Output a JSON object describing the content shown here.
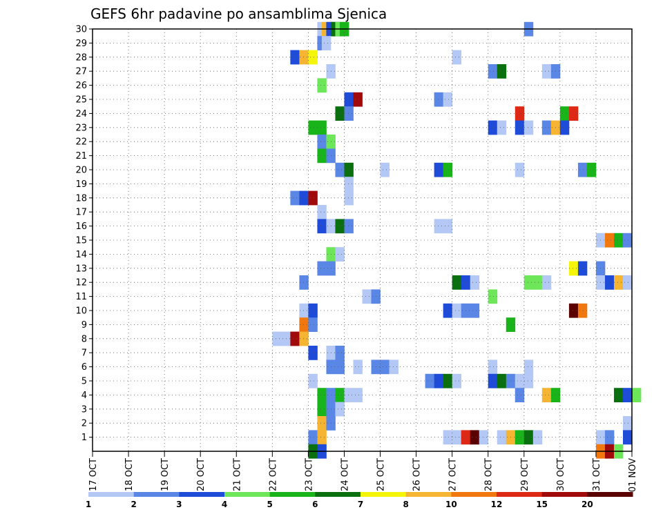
{
  "chart_data": {
    "type": "heatmap",
    "title": "GEFS 6hr padavine po ansamblima Sjenica",
    "y_ticks": [
      "1",
      "2",
      "3",
      "4",
      "5",
      "6",
      "7",
      "8",
      "9",
      "10",
      "11",
      "12",
      "13",
      "14",
      "15",
      "16",
      "17",
      "18",
      "19",
      "20",
      "21",
      "22",
      "23",
      "24",
      "25",
      "26",
      "27",
      "28",
      "29",
      "30"
    ],
    "x_ticks": [
      "17 OCT",
      "18 OCT",
      "19 OCT",
      "20 OCT",
      "21 OCT",
      "22 OCT",
      "23 OCT",
      "24 OCT",
      "25 OCT",
      "26 OCT",
      "27 OCT",
      "28 OCT",
      "29 OCT",
      "30 OCT",
      "31 OCT",
      "01 NOV"
    ],
    "x_range_days": [
      0,
      15
    ],
    "y_range_members": [
      0,
      30
    ],
    "grid": true,
    "colorbar": {
      "labels": [
        "1",
        "2",
        "3",
        "4",
        "5",
        "6",
        "7",
        "8",
        "10",
        "12",
        "15",
        "20"
      ],
      "colors": [
        "#b4c8f5",
        "#5a87e6",
        "#1e4bd7",
        "#6ee65a",
        "#19b419",
        "#0a700f",
        "#f5f50a",
        "#f5b432",
        "#f0780f",
        "#dc2814",
        "#a00a0a",
        "#5a0000"
      ]
    },
    "series_note": "cells: member, x day offset from 17 OCT, precipitation class index (0 = 1mm ... 11 = 20mm)",
    "cells": [
      [
        30,
        6.25,
        0
      ],
      [
        30,
        6.375,
        7
      ],
      [
        30,
        6.5,
        2
      ],
      [
        30,
        6.625,
        5
      ],
      [
        30,
        6.75,
        3
      ],
      [
        30,
        6.875,
        4
      ],
      [
        30,
        12.0,
        1
      ],
      [
        29,
        6.25,
        1
      ],
      [
        29,
        6.375,
        0
      ],
      [
        28,
        5.5,
        2
      ],
      [
        28,
        5.75,
        7
      ],
      [
        28,
        6.0,
        6
      ],
      [
        28,
        10.0,
        0
      ],
      [
        27,
        6.5,
        0
      ],
      [
        27,
        11.0,
        1
      ],
      [
        27,
        11.25,
        5
      ],
      [
        27,
        12.5,
        0
      ],
      [
        27,
        12.75,
        1
      ],
      [
        26,
        6.25,
        3
      ],
      [
        25,
        7.0,
        2
      ],
      [
        25,
        7.25,
        10
      ],
      [
        25,
        9.5,
        1
      ],
      [
        25,
        9.75,
        0
      ],
      [
        24,
        6.75,
        5
      ],
      [
        24,
        7.0,
        1
      ],
      [
        24,
        11.75,
        9
      ],
      [
        24,
        13.0,
        4
      ],
      [
        24,
        13.25,
        9
      ],
      [
        23,
        6.0,
        4
      ],
      [
        23,
        6.25,
        4
      ],
      [
        23,
        11.0,
        2
      ],
      [
        23,
        11.25,
        0
      ],
      [
        23,
        11.75,
        2
      ],
      [
        23,
        12.0,
        0
      ],
      [
        23,
        12.5,
        1
      ],
      [
        23,
        12.75,
        7
      ],
      [
        23,
        13.0,
        2
      ],
      [
        22,
        6.25,
        1
      ],
      [
        22,
        6.5,
        3
      ],
      [
        21,
        6.25,
        4
      ],
      [
        21,
        6.5,
        1
      ],
      [
        20,
        6.75,
        1
      ],
      [
        20,
        7.0,
        5
      ],
      [
        20,
        8.0,
        0
      ],
      [
        20,
        9.5,
        2
      ],
      [
        20,
        9.75,
        4
      ],
      [
        20,
        11.75,
        0
      ],
      [
        20,
        13.5,
        1
      ],
      [
        20,
        13.75,
        4
      ],
      [
        19,
        7.0,
        0
      ],
      [
        18,
        5.5,
        1
      ],
      [
        18,
        5.75,
        2
      ],
      [
        18,
        6.0,
        10
      ],
      [
        18,
        7.0,
        0
      ],
      [
        17,
        6.25,
        0
      ],
      [
        16,
        6.25,
        2
      ],
      [
        16,
        6.5,
        0
      ],
      [
        16,
        6.75,
        5
      ],
      [
        16,
        7.0,
        1
      ],
      [
        16,
        9.5,
        0
      ],
      [
        16,
        9.75,
        0
      ],
      [
        15,
        14.0,
        0
      ],
      [
        15,
        14.25,
        8
      ],
      [
        15,
        14.5,
        4
      ],
      [
        15,
        14.75,
        1
      ],
      [
        14,
        6.5,
        3
      ],
      [
        14,
        6.75,
        0
      ],
      [
        13,
        6.25,
        1
      ],
      [
        13,
        6.5,
        1
      ],
      [
        13,
        13.25,
        6
      ],
      [
        13,
        13.5,
        2
      ],
      [
        13,
        14.0,
        1
      ],
      [
        12,
        5.75,
        1
      ],
      [
        12,
        10.0,
        5
      ],
      [
        12,
        10.25,
        2
      ],
      [
        12,
        10.5,
        0
      ],
      [
        12,
        12.0,
        3
      ],
      [
        12,
        12.25,
        3
      ],
      [
        12,
        12.5,
        0
      ],
      [
        12,
        14.0,
        0
      ],
      [
        12,
        14.25,
        2
      ],
      [
        12,
        14.5,
        7
      ],
      [
        12,
        14.75,
        0
      ],
      [
        11,
        7.5,
        0
      ],
      [
        11,
        7.75,
        1
      ],
      [
        11,
        11.0,
        3
      ],
      [
        10,
        5.75,
        0
      ],
      [
        10,
        6.0,
        2
      ],
      [
        10,
        9.75,
        2
      ],
      [
        10,
        10.0,
        0
      ],
      [
        10,
        10.25,
        1
      ],
      [
        10,
        10.5,
        1
      ],
      [
        10,
        13.25,
        11
      ],
      [
        10,
        13.5,
        8
      ],
      [
        9,
        5.75,
        8
      ],
      [
        9,
        6.0,
        1
      ],
      [
        9,
        11.5,
        4
      ],
      [
        8,
        5.0,
        0
      ],
      [
        8,
        5.25,
        0
      ],
      [
        8,
        5.5,
        10
      ],
      [
        8,
        5.75,
        7
      ],
      [
        7,
        6.0,
        2
      ],
      [
        7,
        6.5,
        0
      ],
      [
        7,
        6.75,
        1
      ],
      [
        6,
        6.5,
        1
      ],
      [
        6,
        6.75,
        1
      ],
      [
        6,
        7.25,
        0
      ],
      [
        6,
        7.75,
        1
      ],
      [
        6,
        8.0,
        1
      ],
      [
        6,
        8.25,
        0
      ],
      [
        6,
        11.0,
        0
      ],
      [
        6,
        12.0,
        0
      ],
      [
        5,
        6.0,
        0
      ],
      [
        5,
        9.25,
        1
      ],
      [
        5,
        9.5,
        2
      ],
      [
        5,
        9.75,
        5
      ],
      [
        5,
        10.0,
        0
      ],
      [
        5,
        11.0,
        2
      ],
      [
        5,
        11.25,
        5
      ],
      [
        5,
        11.5,
        1
      ],
      [
        5,
        11.75,
        0
      ],
      [
        5,
        12.0,
        0
      ],
      [
        4,
        6.25,
        4
      ],
      [
        4,
        6.5,
        1
      ],
      [
        4,
        6.75,
        4
      ],
      [
        4,
        7.0,
        0
      ],
      [
        4,
        7.25,
        0
      ],
      [
        4,
        11.75,
        1
      ],
      [
        4,
        12.5,
        7
      ],
      [
        4,
        12.75,
        4
      ],
      [
        4,
        14.5,
        5
      ],
      [
        4,
        14.75,
        2
      ],
      [
        4,
        15.0,
        3
      ],
      [
        3,
        6.25,
        4
      ],
      [
        3,
        6.5,
        1
      ],
      [
        3,
        6.75,
        0
      ],
      [
        2,
        6.25,
        7
      ],
      [
        2,
        6.5,
        1
      ],
      [
        2,
        14.75,
        0
      ],
      [
        1,
        6.0,
        1
      ],
      [
        1,
        6.25,
        7
      ],
      [
        1,
        9.75,
        0
      ],
      [
        1,
        10.0,
        0
      ],
      [
        1,
        10.25,
        9
      ],
      [
        1,
        10.5,
        11
      ],
      [
        1,
        10.75,
        0
      ],
      [
        1,
        11.25,
        0
      ],
      [
        1,
        11.5,
        7
      ],
      [
        1,
        11.75,
        4
      ],
      [
        1,
        12.0,
        5
      ],
      [
        1,
        12.25,
        0
      ],
      [
        1,
        14.0,
        0
      ],
      [
        1,
        14.25,
        1
      ],
      [
        1,
        14.75,
        2
      ],
      [
        0,
        6.0,
        5
      ],
      [
        0,
        6.25,
        2
      ],
      [
        0,
        14.0,
        8
      ],
      [
        0,
        14.25,
        10
      ],
      [
        0,
        14.5,
        3
      ]
    ]
  }
}
